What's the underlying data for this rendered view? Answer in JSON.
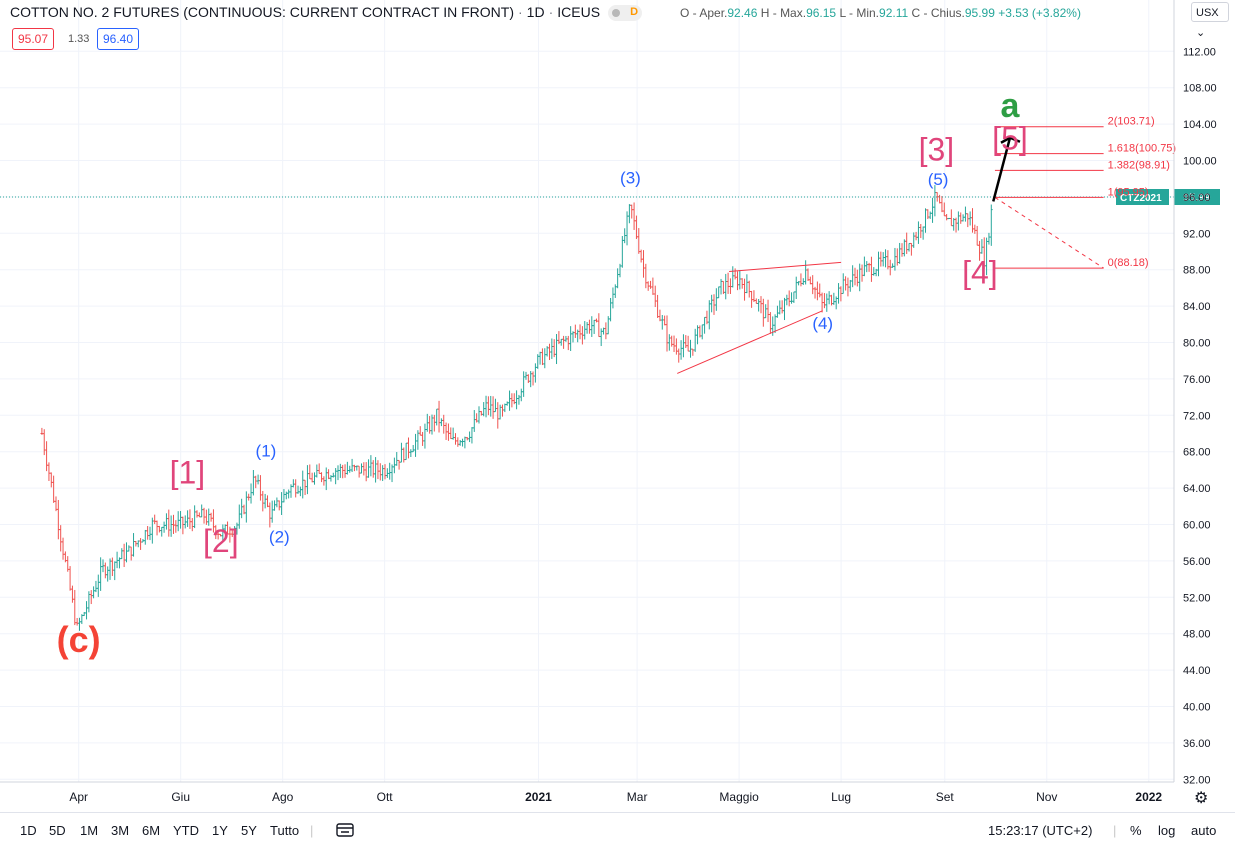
{
  "header": {
    "symbol": "COTTON NO. 2 FUTURES (CONTINUOUS: CURRENT CONTRACT IN FRONT)",
    "interval": "1D",
    "exchange": "ICEUS",
    "d_badge": "D",
    "ohlc": {
      "open_label": "O - Aper.",
      "open": "92.46",
      "high_label": "H - Max.",
      "high": "96.15",
      "low_label": "L - Min.",
      "low": "92.11",
      "close_label": "C - Chius.",
      "close": "95.99",
      "change": "+3.53 (+3.82%)"
    },
    "bid": "95.07",
    "spread": "1.33",
    "ask": "96.40",
    "currency": "USX"
  },
  "colors": {
    "up": "#26a69a",
    "down": "#ef5350",
    "elliott_major": "#e0457b",
    "elliott_minor": "#2962ff",
    "wave_c": "#f44336",
    "wave_a": "#2e9e44",
    "fib": "#f23645"
  },
  "chart_data": {
    "type": "candlestick",
    "symbol": "CTZ2021",
    "last_price": "95.99",
    "ylim": [
      31,
      115
    ],
    "y_ticks": [
      "112.00",
      "108.00",
      "104.00",
      "100.00",
      "96.00",
      "92.00",
      "88.00",
      "84.00",
      "80.00",
      "76.00",
      "72.00",
      "68.00",
      "64.00",
      "60.00",
      "56.00",
      "52.00",
      "48.00",
      "44.00",
      "40.00",
      "36.00",
      "32.00"
    ],
    "y_tick_values": [
      112,
      108,
      104,
      100,
      96,
      92,
      88,
      84,
      80,
      76,
      72,
      68,
      64,
      60,
      56,
      52,
      48,
      44,
      40,
      36,
      32
    ],
    "x_ticks": [
      "Apr",
      "Giu",
      "Ago",
      "Ott",
      "2021",
      "Mar",
      "Maggio",
      "Lug",
      "Set",
      "Nov",
      "2022"
    ],
    "x_tick_dates": [
      "2020-04-01",
      "2020-06-01",
      "2020-08-01",
      "2020-10-01",
      "2021-01-01",
      "2021-03-01",
      "2021-05-01",
      "2021-07-01",
      "2021-09-01",
      "2021-11-01",
      "2022-01-01"
    ],
    "price_path": [
      [
        "2020-03-10",
        70
      ],
      [
        "2020-03-20",
        60
      ],
      [
        "2020-03-31",
        48.5
      ],
      [
        "2020-04-15",
        55
      ],
      [
        "2020-05-01",
        57
      ],
      [
        "2020-05-15",
        60
      ],
      [
        "2020-06-01",
        60
      ],
      [
        "2020-06-15",
        61
      ],
      [
        "2020-06-25",
        59
      ],
      [
        "2020-07-05",
        60
      ],
      [
        "2020-07-15",
        65
      ],
      [
        "2020-07-25",
        61
      ],
      [
        "2020-08-05",
        64
      ],
      [
        "2020-09-01",
        66
      ],
      [
        "2020-10-01",
        66
      ],
      [
        "2020-10-25",
        70
      ],
      [
        "2020-11-01",
        72
      ],
      [
        "2020-11-10",
        69
      ],
      [
        "2020-11-20",
        70
      ],
      [
        "2020-12-01",
        73
      ],
      [
        "2020-12-10",
        72
      ],
      [
        "2021-01-01",
        78
      ],
      [
        "2021-01-15",
        80
      ],
      [
        "2021-02-01",
        82
      ],
      [
        "2021-02-10",
        81
      ],
      [
        "2021-02-25",
        95
      ],
      [
        "2021-03-05",
        88
      ],
      [
        "2021-03-20",
        80
      ],
      [
        "2021-04-01",
        79
      ],
      [
        "2021-04-20",
        86
      ],
      [
        "2021-05-01",
        87
      ],
      [
        "2021-05-10",
        85
      ],
      [
        "2021-05-20",
        82
      ],
      [
        "2021-06-01",
        85
      ],
      [
        "2021-06-10",
        88
      ],
      [
        "2021-06-20",
        84
      ],
      [
        "2021-07-01",
        86
      ],
      [
        "2021-07-15",
        88
      ],
      [
        "2021-08-01",
        89
      ],
      [
        "2021-08-15",
        92
      ],
      [
        "2021-08-27",
        96
      ],
      [
        "2021-09-01",
        93
      ],
      [
        "2021-09-15",
        94
      ],
      [
        "2021-09-25",
        89
      ],
      [
        "2021-09-30",
        96
      ]
    ],
    "elliott_labels": [
      {
        "text": "(c)",
        "date": "2020-04-01",
        "price": 46,
        "style": "wave_c"
      },
      {
        "text": "[1]",
        "date": "2020-06-05",
        "price": 64.5,
        "style": "major"
      },
      {
        "text": "[2]",
        "date": "2020-06-25",
        "price": 57,
        "style": "major"
      },
      {
        "text": "(1)",
        "date": "2020-07-22",
        "price": 67.5,
        "style": "minor"
      },
      {
        "text": "(2)",
        "date": "2020-07-30",
        "price": 58,
        "style": "minor"
      },
      {
        "text": "(3)",
        "date": "2021-02-25",
        "price": 97.5,
        "style": "minor"
      },
      {
        "text": "(4)",
        "date": "2021-06-20",
        "price": 81.5,
        "style": "minor"
      },
      {
        "text": "(5)",
        "date": "2021-08-28",
        "price": 97.3,
        "style": "minor"
      },
      {
        "text": "[3]",
        "date": "2021-08-27",
        "price": 100,
        "style": "major"
      },
      {
        "text": "[4]",
        "date": "2021-09-22",
        "price": 86.5,
        "style": "major"
      },
      {
        "text": "[5]",
        "date": "2021-10-10",
        "price": 101.2,
        "style": "major"
      },
      {
        "text": "a",
        "date": "2021-10-10",
        "price": 104.8,
        "style": "wave_a"
      }
    ],
    "triangle_lines": [
      [
        [
          "2021-03-25",
          76.6
        ],
        [
          "2021-06-20",
          83.5
        ]
      ],
      [
        [
          "2021-04-25",
          87.8
        ],
        [
          "2021-07-01",
          88.8
        ]
      ]
    ],
    "projection_arrow": [
      [
        "2021-09-30",
        95.5
      ],
      [
        "2021-10-10",
        102.5
      ]
    ],
    "fib_levels": [
      {
        "label": "2(103.71)",
        "price": 103.71
      },
      {
        "label": "1.618(100.75)",
        "price": 100.75
      },
      {
        "label": "1.382(98.91)",
        "price": 98.91
      },
      {
        "label": "1(95.95)",
        "price": 95.95
      },
      {
        "label": "0(88.18)",
        "price": 88.18
      }
    ],
    "fib_range": [
      "2021-10-01",
      "2021-12-05"
    ]
  },
  "toolbar": {
    "ranges": [
      "1D",
      "5D",
      "1M",
      "3M",
      "6M",
      "YTD",
      "1Y",
      "5Y",
      "Tutto"
    ],
    "time": "15:23:17 (UTC+2)",
    "percent": "%",
    "log": "log",
    "auto": "auto"
  }
}
